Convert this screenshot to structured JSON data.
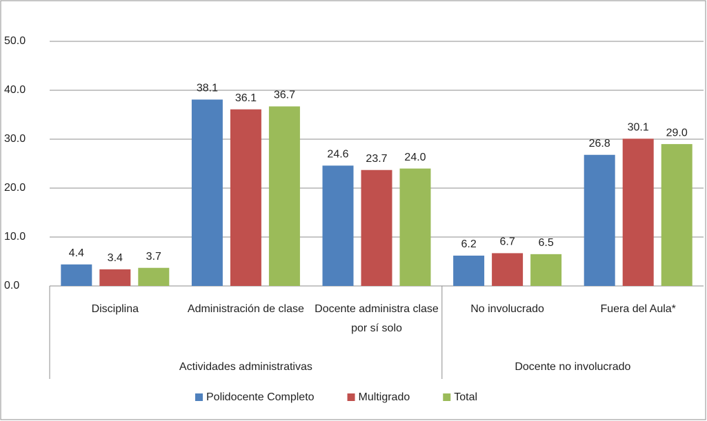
{
  "chart_data": {
    "type": "bar",
    "categories": [
      "Disciplina",
      "Administración de clase",
      "Docente administra clase por sí solo",
      "No involucrado",
      "Fuera del Aula*"
    ],
    "groups": [
      {
        "label": "Actividades administrativas",
        "span": 3
      },
      {
        "label": "Docente no involucrado",
        "span": 2
      }
    ],
    "series": [
      {
        "name": "Polidocente Completo",
        "color": "#4f81bd",
        "values": [
          4.4,
          38.1,
          24.6,
          6.2,
          26.8
        ],
        "value_labels": [
          "4.4",
          "38.1",
          "24.6",
          "6.2",
          "26.8"
        ]
      },
      {
        "name": "Multigrado",
        "color": "#c0504d",
        "values": [
          3.4,
          36.1,
          23.7,
          6.7,
          30.1
        ],
        "value_labels": [
          "3.4",
          "36.1",
          "23.7",
          "6.7",
          "30.1"
        ]
      },
      {
        "name": "Total",
        "color": "#9bbb59",
        "values": [
          3.7,
          36.7,
          24.0,
          6.5,
          29.0
        ],
        "value_labels": [
          "3.7",
          "36.7",
          "24.0",
          "6.5",
          "29.0"
        ]
      }
    ],
    "ylim": [
      0,
      50
    ],
    "yticks": [
      {
        "value": 0,
        "label": "0.0"
      },
      {
        "value": 10,
        "label": "10.0"
      },
      {
        "value": 20,
        "label": "20.0"
      },
      {
        "value": 30,
        "label": "30.0"
      },
      {
        "value": 40,
        "label": "40.0"
      },
      {
        "value": 50,
        "label": "50.0"
      }
    ],
    "grid": true,
    "legend": "bottom"
  }
}
